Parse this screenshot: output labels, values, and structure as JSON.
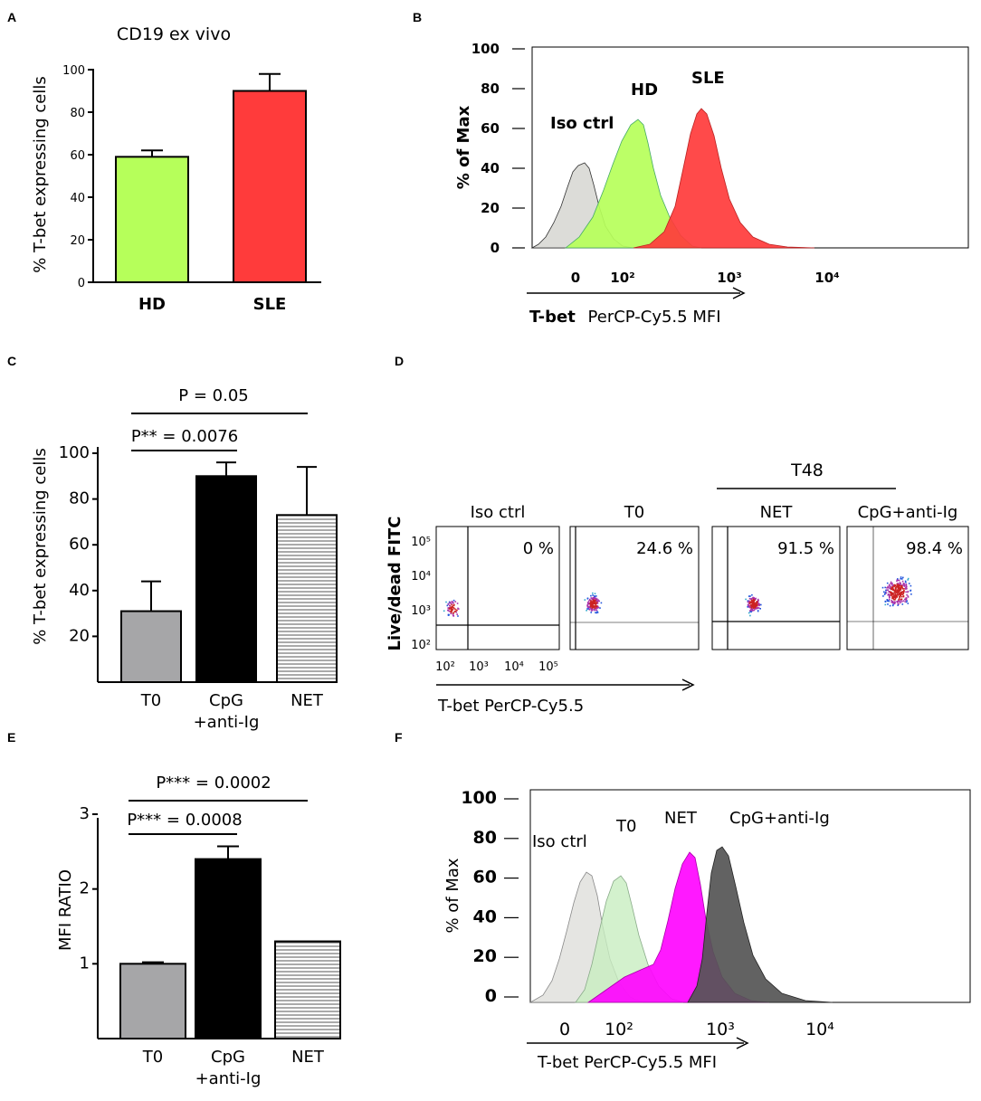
{
  "panels": {
    "A": {
      "letter": "A"
    },
    "B": {
      "letter": "B"
    },
    "C": {
      "letter": "C"
    },
    "D": {
      "letter": "D"
    },
    "E": {
      "letter": "E"
    },
    "F": {
      "letter": "F"
    }
  },
  "colors": {
    "hd_green": "#b6ff5a",
    "sle_red": "#ff3b3b",
    "t0_gray": "#a6a6a8",
    "cpg_black": "#000000",
    "iso_gray": "#dcdcd8",
    "f_green": "#c8eec0",
    "f_magenta": "#ff00ff",
    "f_dark": "#555555"
  },
  "chart_data": [
    {
      "panel": "A",
      "type": "bar",
      "title": "CD19 ex vivo",
      "ylabel": "% T-bet expressing cells",
      "categories": [
        "HD",
        "SLE"
      ],
      "values": [
        59,
        90
      ],
      "errors": [
        3,
        8
      ],
      "ylim": [
        0,
        100
      ],
      "yticks": [
        "0",
        "20",
        "40",
        "60",
        "80",
        "100"
      ]
    },
    {
      "panel": "B",
      "type": "area",
      "ylabel": "% of Max",
      "xlabel_bold": "T-bet",
      "xlabel_rest": "PerCP-Cy5.5 MFI",
      "yticks": [
        "0",
        "20",
        "40",
        "60",
        "80",
        "100"
      ],
      "xticks": [
        "0",
        "10²",
        "10³",
        "10⁴"
      ],
      "series": [
        {
          "name": "Iso ctrl",
          "peak_x": "~10¹",
          "peak_y": 46
        },
        {
          "name": "HD",
          "peak_x": "~10²",
          "peak_y": 65
        },
        {
          "name": "SLE",
          "peak_x": "~5×10²",
          "peak_y": 72
        }
      ]
    },
    {
      "panel": "C",
      "type": "bar",
      "ylabel": "% T-bet expressing cells",
      "categories": [
        "T0",
        "CpG +anti-Ig",
        "NET"
      ],
      "category_lines": [
        [
          "T0"
        ],
        [
          "CpG",
          "+anti-Ig"
        ],
        [
          "NET"
        ]
      ],
      "values": [
        31,
        90,
        73
      ],
      "errors": [
        13,
        6,
        21
      ],
      "ylim": [
        0,
        100
      ],
      "yticks": [
        "20",
        "40",
        "60",
        "80",
        "100"
      ],
      "annotations": [
        "P = 0.05",
        "P** = 0.0076"
      ]
    },
    {
      "panel": "D",
      "type": "scatter",
      "ylabel": "Live/dead FITC",
      "xlabel": "T-bet PerCP-Cy5.5",
      "group_label": "T48",
      "yticks": [
        "10⁵",
        "10⁴",
        "10³",
        "10²"
      ],
      "xticks": [
        "10²",
        "10³",
        "10⁴",
        "10⁵"
      ],
      "plots": [
        {
          "title": "Iso ctrl",
          "percent": "0 %"
        },
        {
          "title": "T0",
          "percent": "24.6 %"
        },
        {
          "title": "NET",
          "percent": "91.5 %"
        },
        {
          "title": "CpG+anti-Ig",
          "percent": "98.4 %"
        }
      ]
    },
    {
      "panel": "E",
      "type": "bar",
      "ylabel": "MFI RATIO",
      "categories": [
        "T0",
        "CpG +anti-Ig",
        "NET"
      ],
      "category_lines": [
        [
          "T0"
        ],
        [
          "CpG",
          "+anti-Ig"
        ],
        [
          "NET"
        ]
      ],
      "values": [
        1.0,
        2.4,
        1.3
      ],
      "errors": [
        0.02,
        0.17,
        0
      ],
      "ylim": [
        0,
        3
      ],
      "yticks": [
        "1",
        "2",
        "3"
      ],
      "annotations": [
        "P*** = 0.0002",
        "P*** = 0.0008"
      ]
    },
    {
      "panel": "F",
      "type": "area",
      "ylabel": "% of Max",
      "xlabel": "T-bet PerCP-Cy5.5 MFI",
      "yticks": [
        "0",
        "20",
        "40",
        "60",
        "80",
        "100"
      ],
      "xticks": [
        "0",
        "10²",
        "10³",
        "10⁴"
      ],
      "series": [
        {
          "name": "Iso ctrl",
          "peak_y": 63
        },
        {
          "name": "T0",
          "peak_y": 61
        },
        {
          "name": "NET",
          "peak_y": 70
        },
        {
          "name": "CpG+anti-Ig",
          "peak_y": 75
        }
      ]
    }
  ]
}
